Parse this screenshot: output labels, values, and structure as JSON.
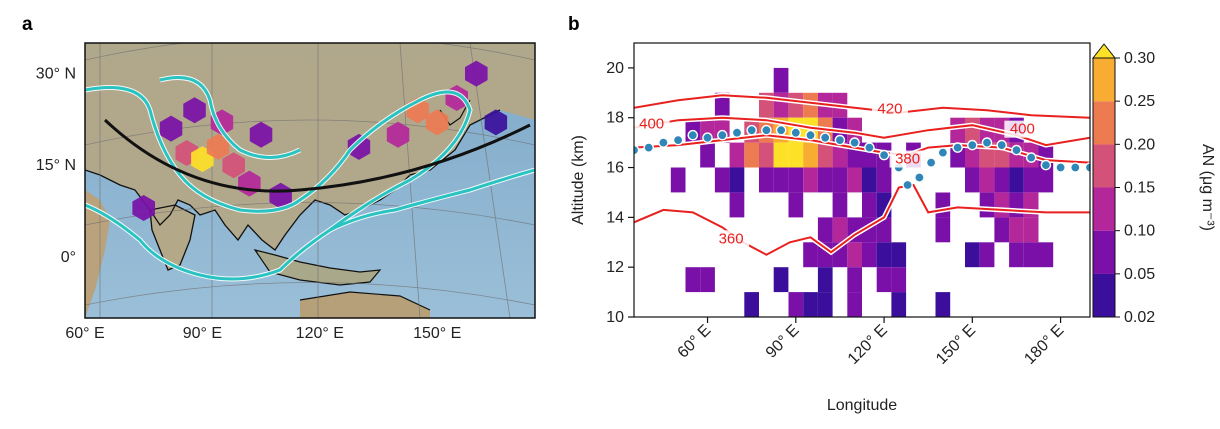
{
  "figure": {
    "panel_a_letter": "a",
    "panel_b_letter": "b"
  },
  "colors": {
    "contour_red": "#e8201e",
    "dots_blue": "#2f86b9",
    "cyan_contour": "#29c4c2",
    "land": "#b7a98a",
    "ocean": "#8fb4cf",
    "trajectory": "#111111"
  },
  "chart_data": [
    {
      "type": "heatmap",
      "panel": "a",
      "description_source": "map",
      "x_tick_labels": [
        "60° E",
        "90° E",
        "120° E",
        "150° E"
      ],
      "y_tick_labels": [
        "30° N",
        "15° N",
        "0°"
      ],
      "xlim": [
        60,
        175
      ],
      "ylim": [
        -10,
        35
      ],
      "cells": [
        {
          "lon": 82,
          "lat": 21,
          "v": 0.08
        },
        {
          "lon": 86,
          "lat": 17,
          "v": 0.15
        },
        {
          "lon": 90,
          "lat": 16,
          "v": 0.3
        },
        {
          "lon": 94,
          "lat": 18,
          "v": 0.22
        },
        {
          "lon": 98,
          "lat": 15,
          "v": 0.18
        },
        {
          "lon": 102,
          "lat": 12,
          "v": 0.12
        },
        {
          "lon": 88,
          "lat": 24,
          "v": 0.06
        },
        {
          "lon": 95,
          "lat": 22,
          "v": 0.1
        },
        {
          "lon": 105,
          "lat": 20,
          "v": 0.07
        },
        {
          "lon": 110,
          "lat": 10,
          "v": 0.05
        },
        {
          "lon": 145,
          "lat": 24,
          "v": 0.24
        },
        {
          "lon": 150,
          "lat": 22,
          "v": 0.2
        },
        {
          "lon": 155,
          "lat": 26,
          "v": 0.12
        },
        {
          "lon": 140,
          "lat": 20,
          "v": 0.1
        },
        {
          "lon": 160,
          "lat": 30,
          "v": 0.06
        },
        {
          "lon": 130,
          "lat": 18,
          "v": 0.08
        },
        {
          "lon": 165,
          "lat": 22,
          "v": 0.04
        },
        {
          "lon": 75,
          "lat": 8,
          "v": 0.05
        }
      ]
    },
    {
      "type": "heatmap",
      "panel": "b",
      "xlabel": "Longitude",
      "ylabel": "Altitude (km)",
      "xlim": [
        35,
        190
      ],
      "ylim": [
        10,
        21
      ],
      "x_ticks": [
        60,
        90,
        120,
        150,
        180
      ],
      "x_tick_labels": [
        "60° E",
        "90° E",
        "120° E",
        "150° E",
        "180° E"
      ],
      "y_ticks": [
        10,
        12,
        14,
        16,
        18,
        20
      ],
      "y_tick_labels": [
        "10",
        "12",
        "14",
        "16",
        "18",
        "20"
      ],
      "colorbar": {
        "label": "AN (μg m⁻³)",
        "ticks": [
          0.02,
          0.05,
          0.1,
          0.15,
          0.2,
          0.25,
          0.3
        ],
        "tick_labels": [
          "0.02",
          "0.05",
          "0.10",
          "0.15",
          "0.20",
          "0.25",
          "0.30"
        ],
        "colors": [
          "#3b0f9c",
          "#7a10a8",
          "#b4279a",
          "#d4517a",
          "#ed7b52",
          "#f8ad32",
          "#fde127"
        ]
      },
      "cells": [
        {
          "lon": 50,
          "alt": 15.5,
          "v": 0.05
        },
        {
          "lon": 55,
          "alt": 11.5,
          "v": 0.05
        },
        {
          "lon": 60,
          "alt": 11.5,
          "v": 0.05
        },
        {
          "lon": 55,
          "alt": 17.5,
          "v": 0.05
        },
        {
          "lon": 60,
          "alt": 17.5,
          "v": 0.1
        },
        {
          "lon": 60,
          "alt": 16.5,
          "v": 0.05
        },
        {
          "lon": 65,
          "alt": 18.5,
          "v": 0.05
        },
        {
          "lon": 65,
          "alt": 17.5,
          "v": 0.1
        },
        {
          "lon": 65,
          "alt": 15.5,
          "v": 0.05
        },
        {
          "lon": 70,
          "alt": 15.5,
          "v": 0.02
        },
        {
          "lon": 70,
          "alt": 14.5,
          "v": 0.05
        },
        {
          "lon": 70,
          "alt": 16.5,
          "v": 0.1
        },
        {
          "lon": 75,
          "alt": 17.5,
          "v": 0.15
        },
        {
          "lon": 75,
          "alt": 16.5,
          "v": 0.2
        },
        {
          "lon": 75,
          "alt": 10.5,
          "v": 0.02
        },
        {
          "lon": 80,
          "alt": 18.5,
          "v": 0.15
        },
        {
          "lon": 80,
          "alt": 17.5,
          "v": 0.2
        },
        {
          "lon": 80,
          "alt": 16.5,
          "v": 0.15
        },
        {
          "lon": 80,
          "alt": 15.5,
          "v": 0.05
        },
        {
          "lon": 85,
          "alt": 19.5,
          "v": 0.05
        },
        {
          "lon": 85,
          "alt": 18.5,
          "v": 0.1
        },
        {
          "lon": 85,
          "alt": 17.5,
          "v": 0.25
        },
        {
          "lon": 85,
          "alt": 16.5,
          "v": 0.3
        },
        {
          "lon": 85,
          "alt": 15.5,
          "v": 0.05
        },
        {
          "lon": 85,
          "alt": 11.5,
          "v": 0.02
        },
        {
          "lon": 90,
          "alt": 18.5,
          "v": 0.15
        },
        {
          "lon": 90,
          "alt": 17.5,
          "v": 0.3
        },
        {
          "lon": 90,
          "alt": 16.5,
          "v": 0.3
        },
        {
          "lon": 90,
          "alt": 15.5,
          "v": 0.05
        },
        {
          "lon": 90,
          "alt": 14.5,
          "v": 0.05
        },
        {
          "lon": 90,
          "alt": 10.5,
          "v": 0.05
        },
        {
          "lon": 95,
          "alt": 18.5,
          "v": 0.2
        },
        {
          "lon": 95,
          "alt": 17.5,
          "v": 0.3
        },
        {
          "lon": 95,
          "alt": 16.5,
          "v": 0.25
        },
        {
          "lon": 95,
          "alt": 15.5,
          "v": 0.1
        },
        {
          "lon": 95,
          "alt": 12.5,
          "v": 0.05
        },
        {
          "lon": 95,
          "alt": 10.5,
          "v": 0.02
        },
        {
          "lon": 100,
          "alt": 18.5,
          "v": 0.1
        },
        {
          "lon": 100,
          "alt": 17.5,
          "v": 0.2
        },
        {
          "lon": 100,
          "alt": 16.5,
          "v": 0.15
        },
        {
          "lon": 100,
          "alt": 15.5,
          "v": 0.05
        },
        {
          "lon": 100,
          "alt": 13.5,
          "v": 0.05
        },
        {
          "lon": 100,
          "alt": 12.5,
          "v": 0.05
        },
        {
          "lon": 100,
          "alt": 11.5,
          "v": 0.02
        },
        {
          "lon": 100,
          "alt": 10.5,
          "v": 0.02
        },
        {
          "lon": 105,
          "alt": 18.5,
          "v": 0.1
        },
        {
          "lon": 105,
          "alt": 17.5,
          "v": 0.05
        },
        {
          "lon": 105,
          "alt": 16.5,
          "v": 0.1
        },
        {
          "lon": 105,
          "alt": 15.5,
          "v": 0.05
        },
        {
          "lon": 105,
          "alt": 14.5,
          "v": 0.05
        },
        {
          "lon": 105,
          "alt": 13.5,
          "v": 0.1
        },
        {
          "lon": 105,
          "alt": 12.5,
          "v": 0.05
        },
        {
          "lon": 110,
          "alt": 17.5,
          "v": 0.1
        },
        {
          "lon": 110,
          "alt": 16.5,
          "v": 0.05
        },
        {
          "lon": 110,
          "alt": 15.5,
          "v": 0.1
        },
        {
          "lon": 110,
          "alt": 13.5,
          "v": 0.05
        },
        {
          "lon": 110,
          "alt": 12.5,
          "v": 0.1
        },
        {
          "lon": 110,
          "alt": 11.5,
          "v": 0.05
        },
        {
          "lon": 110,
          "alt": 10.5,
          "v": 0.05
        },
        {
          "lon": 115,
          "alt": 16.5,
          "v": 0.05
        },
        {
          "lon": 115,
          "alt": 15.5,
          "v": 0.02
        },
        {
          "lon": 115,
          "alt": 14.5,
          "v": 0.05
        },
        {
          "lon": 115,
          "alt": 13.5,
          "v": 0.05
        },
        {
          "lon": 115,
          "alt": 12.5,
          "v": 0.05
        },
        {
          "lon": 120,
          "alt": 16.5,
          "v": 0.05
        },
        {
          "lon": 120,
          "alt": 15.5,
          "v": 0.05
        },
        {
          "lon": 120,
          "alt": 14.5,
          "v": 0.02
        },
        {
          "lon": 120,
          "alt": 13.5,
          "v": 0.05
        },
        {
          "lon": 120,
          "alt": 12.5,
          "v": 0.02
        },
        {
          "lon": 120,
          "alt": 11.5,
          "v": 0.05
        },
        {
          "lon": 125,
          "alt": 12.5,
          "v": 0.02
        },
        {
          "lon": 125,
          "alt": 11.5,
          "v": 0.05
        },
        {
          "lon": 125,
          "alt": 10.5,
          "v": 0.02
        },
        {
          "lon": 130,
          "alt": 16.5,
          "v": 0.05
        },
        {
          "lon": 140,
          "alt": 14.5,
          "v": 0.05
        },
        {
          "lon": 140,
          "alt": 13.5,
          "v": 0.05
        },
        {
          "lon": 140,
          "alt": 10.5,
          "v": 0.02
        },
        {
          "lon": 145,
          "alt": 16.5,
          "v": 0.05
        },
        {
          "lon": 145,
          "alt": 17.5,
          "v": 0.1
        },
        {
          "lon": 150,
          "alt": 17.5,
          "v": 0.15
        },
        {
          "lon": 150,
          "alt": 16.5,
          "v": 0.1
        },
        {
          "lon": 150,
          "alt": 15.5,
          "v": 0.05
        },
        {
          "lon": 150,
          "alt": 12.5,
          "v": 0.02
        },
        {
          "lon": 155,
          "alt": 17.5,
          "v": 0.1
        },
        {
          "lon": 155,
          "alt": 16.5,
          "v": 0.15
        },
        {
          "lon": 155,
          "alt": 15.5,
          "v": 0.1
        },
        {
          "lon": 155,
          "alt": 14.5,
          "v": 0.05
        },
        {
          "lon": 155,
          "alt": 12.5,
          "v": 0.05
        },
        {
          "lon": 160,
          "alt": 17.5,
          "v": 0.1
        },
        {
          "lon": 160,
          "alt": 16.5,
          "v": 0.15
        },
        {
          "lon": 160,
          "alt": 15.5,
          "v": 0.05
        },
        {
          "lon": 160,
          "alt": 14.5,
          "v": 0.1
        },
        {
          "lon": 160,
          "alt": 13.5,
          "v": 0.05
        },
        {
          "lon": 165,
          "alt": 17.5,
          "v": 0.05
        },
        {
          "lon": 165,
          "alt": 16.5,
          "v": 0.1
        },
        {
          "lon": 165,
          "alt": 15.5,
          "v": 0.02
        },
        {
          "lon": 165,
          "alt": 14.5,
          "v": 0.05
        },
        {
          "lon": 165,
          "alt": 13.5,
          "v": 0.1
        },
        {
          "lon": 165,
          "alt": 12.5,
          "v": 0.05
        },
        {
          "lon": 170,
          "alt": 16.5,
          "v": 0.1
        },
        {
          "lon": 170,
          "alt": 15.5,
          "v": 0.05
        },
        {
          "lon": 170,
          "alt": 14.5,
          "v": 0.1
        },
        {
          "lon": 170,
          "alt": 13.5,
          "v": 0.1
        },
        {
          "lon": 170,
          "alt": 12.5,
          "v": 0.05
        },
        {
          "lon": 175,
          "alt": 16.5,
          "v": 0.05
        },
        {
          "lon": 175,
          "alt": 15.5,
          "v": 0.05
        },
        {
          "lon": 175,
          "alt": 12.5,
          "v": 0.05
        }
      ],
      "contours": [
        {
          "label": "360",
          "label_lon": 68,
          "label_alt": 13.0,
          "points": [
            [
              35,
              13.8
            ],
            [
              45,
              14.3
            ],
            [
              55,
              14.2
            ],
            [
              65,
              13.6
            ],
            [
              72,
              13.0
            ],
            [
              80,
              12.5
            ],
            [
              88,
              13.0
            ],
            [
              95,
              13.2
            ],
            [
              102,
              12.6
            ],
            [
              110,
              13.3
            ],
            [
              120,
              14.0
            ],
            [
              125,
              15.2
            ],
            [
              130,
              15.3
            ],
            [
              135,
              14.2
            ],
            [
              145,
              14.4
            ],
            [
              160,
              14.3
            ],
            [
              175,
              14.2
            ],
            [
              190,
              14.2
            ]
          ]
        },
        {
          "label": "380",
          "label_lon": 128,
          "label_alt": 16.2,
          "points": [
            [
              35,
              16.8
            ],
            [
              50,
              16.9
            ],
            [
              65,
              17.1
            ],
            [
              80,
              17.3
            ],
            [
              95,
              17.1
            ],
            [
              110,
              16.8
            ],
            [
              120,
              16.6
            ],
            [
              128,
              16.5
            ],
            [
              135,
              16.8
            ],
            [
              145,
              16.9
            ],
            [
              160,
              16.8
            ],
            [
              175,
              16.3
            ],
            [
              190,
              16.2
            ]
          ]
        },
        {
          "label": "400",
          "label_lon": 41,
          "label_alt": 17.6,
          "points": [
            [
              35,
              17.6
            ],
            [
              50,
              17.9
            ],
            [
              65,
              18.0
            ],
            [
              80,
              17.9
            ],
            [
              95,
              17.6
            ],
            [
              110,
              17.4
            ],
            [
              120,
              17.2
            ],
            [
              135,
              17.5
            ],
            [
              150,
              17.7
            ],
            [
              165,
              17.3
            ],
            [
              175,
              16.9
            ],
            [
              190,
              17.2
            ]
          ]
        },
        {
          "label": "400",
          "label_lon": 167,
          "label_alt": 17.4,
          "points": []
        },
        {
          "label": "420",
          "label_lon": 122,
          "label_alt": 18.2,
          "points": [
            [
              35,
              18.4
            ],
            [
              50,
              18.7
            ],
            [
              65,
              18.9
            ],
            [
              80,
              18.8
            ],
            [
              95,
              18.6
            ],
            [
              110,
              18.4
            ],
            [
              125,
              18.2
            ],
            [
              140,
              18.4
            ],
            [
              155,
              18.3
            ],
            [
              170,
              18.1
            ],
            [
              190,
              18.0
            ]
          ]
        }
      ],
      "dots": [
        [
          35,
          16.7
        ],
        [
          40,
          16.8
        ],
        [
          45,
          17.0
        ],
        [
          50,
          17.1
        ],
        [
          55,
          17.3
        ],
        [
          60,
          17.2
        ],
        [
          65,
          17.3
        ],
        [
          70,
          17.4
        ],
        [
          75,
          17.5
        ],
        [
          80,
          17.5
        ],
        [
          85,
          17.5
        ],
        [
          90,
          17.4
        ],
        [
          95,
          17.3
        ],
        [
          100,
          17.2
        ],
        [
          105,
          17.1
        ],
        [
          110,
          17.0
        ],
        [
          115,
          16.8
        ],
        [
          120,
          16.5
        ],
        [
          125,
          16.0
        ],
        [
          128,
          15.3
        ],
        [
          132,
          15.6
        ],
        [
          136,
          16.2
        ],
        [
          140,
          16.6
        ],
        [
          145,
          16.8
        ],
        [
          150,
          16.9
        ],
        [
          155,
          17.0
        ],
        [
          160,
          16.9
        ],
        [
          165,
          16.7
        ],
        [
          170,
          16.4
        ],
        [
          175,
          16.1
        ],
        [
          180,
          16.0
        ],
        [
          185,
          16.0
        ],
        [
          190,
          16.0
        ]
      ]
    }
  ]
}
